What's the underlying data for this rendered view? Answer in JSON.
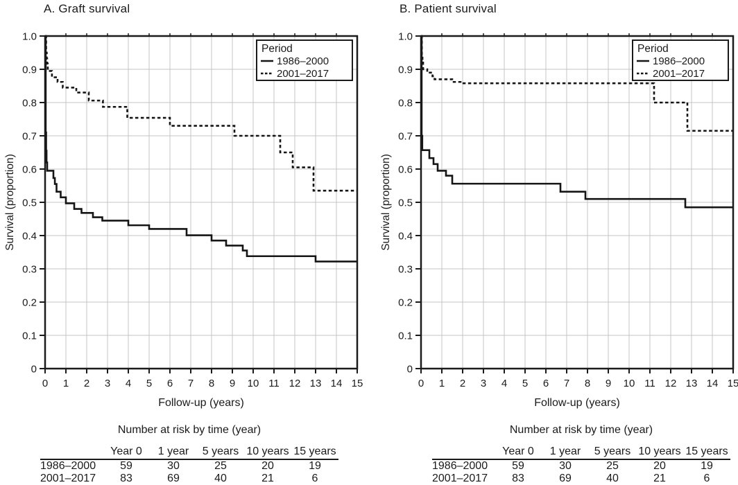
{
  "figure": {
    "background": "#ffffff",
    "text_color": "#1a1a1a",
    "grid_color": "#c4c4c4",
    "curve_color": "#151515"
  },
  "chart_data": [
    {
      "id": "graft-survival",
      "type": "line",
      "subtype": "kaplan-meier-step",
      "title": "A. Graft survival",
      "xlabel": "Follow-up (years)",
      "ylabel": "Survival (proportion)",
      "xlim": [
        0,
        15
      ],
      "ylim": [
        0,
        1.0
      ],
      "x_ticks": [
        0,
        1,
        2,
        3,
        4,
        5,
        6,
        7,
        8,
        9,
        10,
        11,
        12,
        13,
        14,
        15
      ],
      "y_ticks": [
        "1.0",
        "0.9",
        "0.8",
        "0.7",
        "0.6",
        "0.5",
        "0.4",
        "0.3",
        "0.2",
        "0.1",
        "0"
      ],
      "grid": true,
      "legend": {
        "title": "Period",
        "position": "top-right"
      },
      "series": [
        {
          "name": "1986–2000",
          "line_style": "solid",
          "color": "#151515",
          "points": [
            [
              0,
              1.0
            ],
            [
              0.03,
              0.71
            ],
            [
              0.05,
              0.655
            ],
            [
              0.07,
              0.62
            ],
            [
              0.1,
              0.595
            ],
            [
              0.4,
              0.573
            ],
            [
              0.47,
              0.555
            ],
            [
              0.55,
              0.532
            ],
            [
              0.75,
              0.515
            ],
            [
              1.0,
              0.497
            ],
            [
              1.4,
              0.48
            ],
            [
              1.75,
              0.468
            ],
            [
              2.3,
              0.455
            ],
            [
              2.75,
              0.445
            ],
            [
              4.0,
              0.431
            ],
            [
              5.0,
              0.42
            ],
            [
              6.8,
              0.401
            ],
            [
              8.0,
              0.385
            ],
            [
              8.7,
              0.37
            ],
            [
              9.5,
              0.355
            ],
            [
              9.7,
              0.338
            ],
            [
              13.0,
              0.322
            ]
          ]
        },
        {
          "name": "2001–2017",
          "line_style": "dashed",
          "color": "#151515",
          "points": [
            [
              0,
              1.0
            ],
            [
              0.05,
              0.95
            ],
            [
              0.08,
              0.932
            ],
            [
              0.1,
              0.917
            ],
            [
              0.13,
              0.895
            ],
            [
              0.33,
              0.876
            ],
            [
              0.6,
              0.862
            ],
            [
              0.85,
              0.845
            ],
            [
              1.5,
              0.83
            ],
            [
              2.1,
              0.806
            ],
            [
              2.78,
              0.787
            ],
            [
              3.95,
              0.754
            ],
            [
              6.0,
              0.73
            ],
            [
              9.1,
              0.7
            ],
            [
              11.3,
              0.65
            ],
            [
              11.9,
              0.605
            ],
            [
              12.9,
              0.535
            ]
          ]
        }
      ],
      "risk_table": {
        "caption": "Number at risk by time (year)",
        "columns": [
          "Year 0",
          "1 year",
          "5 years",
          "10 years",
          "15 years"
        ],
        "rows": [
          {
            "label": "1986–2000",
            "values": [
              "59",
              "30",
              "25",
              "20",
              "19"
            ]
          },
          {
            "label": "2001–2017",
            "values": [
              "83",
              "69",
              "40",
              "21",
              "6"
            ]
          }
        ]
      }
    },
    {
      "id": "patient-survival",
      "type": "line",
      "subtype": "kaplan-meier-step",
      "title": "B. Patient survival",
      "xlabel": "Follow-up (years)",
      "ylabel": "Survival (proportion)",
      "xlim": [
        0,
        15
      ],
      "ylim": [
        0,
        1.0
      ],
      "x_ticks": [
        0,
        1,
        2,
        3,
        4,
        5,
        6,
        7,
        8,
        9,
        10,
        11,
        12,
        13,
        14,
        15
      ],
      "y_ticks": [
        "1.0",
        "0.9",
        "0.8",
        "0.7",
        "0.6",
        "0.5",
        "0.4",
        "0.3",
        "0.2",
        "0.1",
        "0"
      ],
      "grid": true,
      "legend": {
        "title": "Period",
        "position": "top-right"
      },
      "series": [
        {
          "name": "1986–2000",
          "line_style": "solid",
          "color": "#151515",
          "points": [
            [
              0,
              1.0
            ],
            [
              0.03,
              0.7
            ],
            [
              0.06,
              0.657
            ],
            [
              0.4,
              0.633
            ],
            [
              0.6,
              0.615
            ],
            [
              0.8,
              0.595
            ],
            [
              1.2,
              0.58
            ],
            [
              1.5,
              0.556
            ],
            [
              6.7,
              0.532
            ],
            [
              7.9,
              0.51
            ],
            [
              12.7,
              0.485
            ]
          ]
        },
        {
          "name": "2001–2017",
          "line_style": "dashed",
          "color": "#151515",
          "points": [
            [
              0,
              1.0
            ],
            [
              0.04,
              0.94
            ],
            [
              0.07,
              0.925
            ],
            [
              0.1,
              0.9
            ],
            [
              0.3,
              0.89
            ],
            [
              0.55,
              0.879
            ],
            [
              0.65,
              0.87
            ],
            [
              1.5,
              0.862
            ],
            [
              1.9,
              0.858
            ],
            [
              11.2,
              0.8
            ],
            [
              12.8,
              0.715
            ]
          ]
        }
      ],
      "risk_table": {
        "caption": "Number at risk by time (year)",
        "columns": [
          "Year 0",
          "1 year",
          "5 years",
          "10 years",
          "15 years"
        ],
        "rows": [
          {
            "label": "1986–2000",
            "values": [
              "59",
              "30",
              "25",
              "20",
              "19"
            ]
          },
          {
            "label": "2001–2017",
            "values": [
              "83",
              "69",
              "40",
              "21",
              "6"
            ]
          }
        ]
      }
    }
  ]
}
